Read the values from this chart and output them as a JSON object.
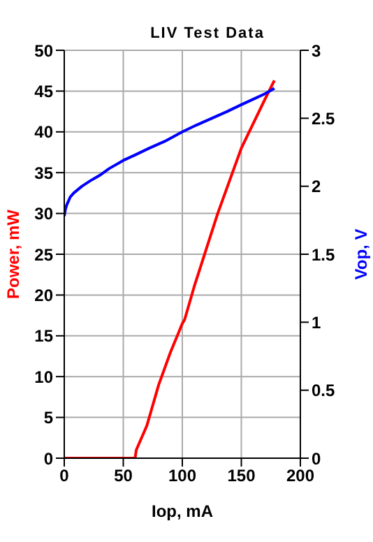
{
  "chart_data": {
    "type": "line",
    "title": "LIV Test Data",
    "xlabel": "Iop, mA",
    "ylabel": "Power, mW",
    "y2label": "Vop, V",
    "xlim": [
      0,
      200
    ],
    "xticks": [
      0,
      50,
      100,
      150,
      200
    ],
    "ylim": [
      0,
      50
    ],
    "yticks": [
      0,
      5,
      10,
      15,
      20,
      25,
      30,
      35,
      40,
      45,
      50
    ],
    "y2lim": [
      0,
      3
    ],
    "y2ticks": [
      0,
      0.5,
      1,
      1.5,
      2,
      2.5,
      3
    ],
    "grid": true,
    "legend": false,
    "marker": "none",
    "line_style": "solid",
    "series": [
      {
        "color": "#ff0000",
        "x": [
          0,
          20,
          40,
          60,
          61,
          70,
          80,
          90,
          100,
          102,
          110,
          120,
          130,
          140,
          150,
          160,
          170,
          178
        ],
        "values": [
          0,
          0,
          0,
          0,
          1,
          4,
          9,
          13,
          16.5,
          17,
          21,
          25.5,
          30,
          34,
          38,
          41,
          44,
          46.3
        ]
      },
      {
        "color": "#0000ff",
        "axis": "y2",
        "x": [
          0,
          1,
          2,
          5,
          8,
          15,
          22,
          30,
          38,
          50,
          60,
          72,
          85,
          100,
          112,
          125,
          138,
          150,
          160,
          170,
          178
        ],
        "values": [
          1.78,
          1.83,
          1.86,
          1.92,
          1.95,
          2.0,
          2.04,
          2.08,
          2.13,
          2.19,
          2.23,
          2.28,
          2.33,
          2.4,
          2.45,
          2.5,
          2.55,
          2.6,
          2.64,
          2.68,
          2.72
        ]
      }
    ]
  }
}
